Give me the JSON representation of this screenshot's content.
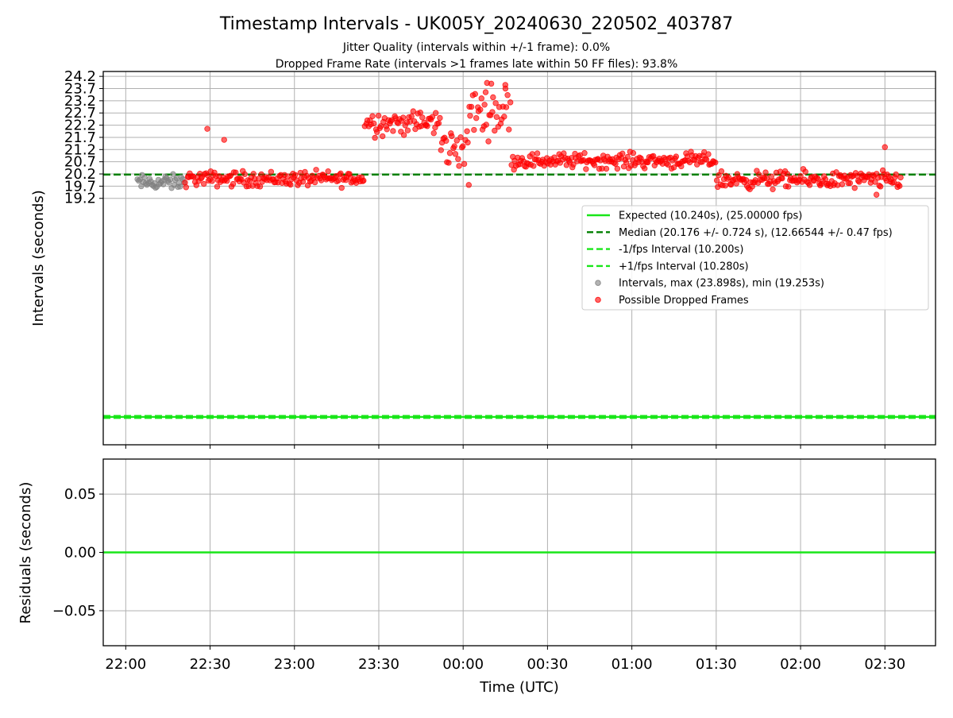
{
  "chart_data": [
    {
      "type": "scatter",
      "title": "Timestamp Intervals - UK005Y_20240630_220502_403787",
      "subtitle_1": "Jitter Quality (intervals within +/-1 frame): 0.0%",
      "subtitle_2": "Dropped Frame Rate (intervals >1 frames late within 50 FF files): 93.8%",
      "ylabel": "Intervals (seconds)",
      "x_range": [
        "21:52",
        "02:48"
      ],
      "ylim": [
        9.1,
        24.4
      ],
      "yticks": [
        "19.2",
        "19.7",
        "20.2",
        "20.7",
        "21.2",
        "21.7",
        "22.2",
        "22.7",
        "23.2",
        "23.7",
        "24.2"
      ],
      "grid": true,
      "legend_position": "center-right",
      "reference_lines": [
        {
          "name": "Expected (10.240s), (25.00000 fps)",
          "value": 10.24,
          "style": "solid",
          "color": "#19e619"
        },
        {
          "name": "Median (20.176 +/- 0.724 s), (12.66544 +/- 0.47 fps)",
          "value": 20.176,
          "style": "dashed",
          "color": "#007f00"
        },
        {
          "name": "-1/fps Interval (10.200s)",
          "value": 10.2,
          "style": "dashed",
          "color": "#19e619"
        },
        {
          "name": "+1/fps Interval (10.280s)",
          "value": 10.28,
          "style": "dashed",
          "color": "#19e619"
        }
      ],
      "series": [
        {
          "name": "Intervals, max (23.898s), min (19.253s)",
          "color": "#808080",
          "segments": [
            {
              "start": "22:04",
              "end": "22:21",
              "center": 19.85,
              "spread": 0.22
            }
          ]
        },
        {
          "name": "Possible Dropped Frames",
          "color": "#ff0000",
          "segments": [
            {
              "start": "22:21",
              "end": "23:25",
              "center": 20.0,
              "spread": 0.22
            },
            {
              "start": "23:25",
              "end": "23:52",
              "center": 22.3,
              "spread": 0.35
            },
            {
              "start": "23:52",
              "end": "00:02",
              "center": 21.3,
              "spread": 0.6
            },
            {
              "start": "00:02",
              "end": "00:17",
              "center": 22.8,
              "spread": 0.7
            },
            {
              "start": "00:17",
              "end": "01:30",
              "center": 20.75,
              "spread": 0.22
            },
            {
              "start": "01:30",
              "end": "02:36",
              "center": 19.95,
              "spread": 0.25
            }
          ],
          "outliers": [
            {
              "x": "22:29",
              "y": 22.05
            },
            {
              "x": "22:35",
              "y": 21.6
            },
            {
              "x": "00:10",
              "y": 23.9
            },
            {
              "x": "00:08",
              "y": 23.55
            },
            {
              "x": "00:15",
              "y": 23.85
            },
            {
              "x": "00:02",
              "y": 19.75
            },
            {
              "x": "02:30",
              "y": 21.3
            },
            {
              "x": "02:27",
              "y": 19.35
            }
          ]
        }
      ]
    },
    {
      "type": "line",
      "ylabel": "Residuals (seconds)",
      "xlabel": "Time (UTC)",
      "ylim": [
        -0.08,
        0.08
      ],
      "yticks": [
        "0.05",
        "0.00",
        "−0.05"
      ],
      "x_ticks": [
        "22:00",
        "22:30",
        "23:00",
        "23:30",
        "00:00",
        "00:30",
        "01:00",
        "01:30",
        "02:00",
        "02:30"
      ],
      "grid": true,
      "series": [
        {
          "name": "",
          "value": 0.0,
          "color": "#19e619"
        }
      ]
    }
  ]
}
